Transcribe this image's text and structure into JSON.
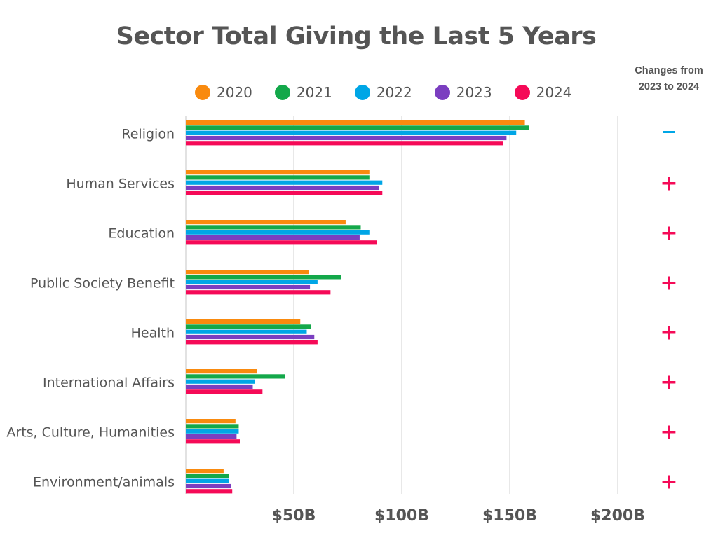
{
  "chart_data": {
    "type": "bar",
    "orientation": "horizontal",
    "title": "Sector Total Giving the Last 5 Years",
    "categories": [
      "Religion",
      "Human Services",
      "Education",
      "Public Society Benefit",
      "Health",
      "International Affairs",
      "Arts, Culture, Humanities",
      "Environment/animals"
    ],
    "series": [
      {
        "name": "2020",
        "color": "#F98A0E",
        "values": [
          157,
          85,
          74,
          57,
          53,
          33,
          23,
          17.5
        ]
      },
      {
        "name": "2021",
        "color": "#13A84A",
        "values": [
          159,
          85,
          81,
          72,
          58,
          46,
          24.5,
          20
        ]
      },
      {
        "name": "2022",
        "color": "#00A6E6",
        "values": [
          153,
          91,
          85,
          61,
          56,
          32,
          24.5,
          20
        ]
      },
      {
        "name": "2023",
        "color": "#7B3EC0",
        "values": [
          148.5,
          89.5,
          80.5,
          57.5,
          59.5,
          31,
          23.5,
          21
        ]
      },
      {
        "name": "2024",
        "color": "#F50A57",
        "values": [
          147,
          91,
          88.5,
          67,
          61,
          35.5,
          25,
          21.5
        ]
      }
    ],
    "xlim": [
      0,
      200
    ],
    "x_ticks": [
      50,
      100,
      150,
      200
    ],
    "x_tick_labels": [
      "$50B",
      "$100B",
      "$150B",
      "$200B"
    ],
    "grid": "vertical",
    "legend": "top",
    "xlabel": "",
    "ylabel": ""
  },
  "changes": {
    "header_line1": "Changes from",
    "header_line2": "2023 to 2024",
    "markers": [
      "−",
      "+",
      "+",
      "+",
      "+",
      "+",
      "+",
      "+"
    ],
    "minus_color": "#00A6E6",
    "plus_color": "#F50A57"
  }
}
